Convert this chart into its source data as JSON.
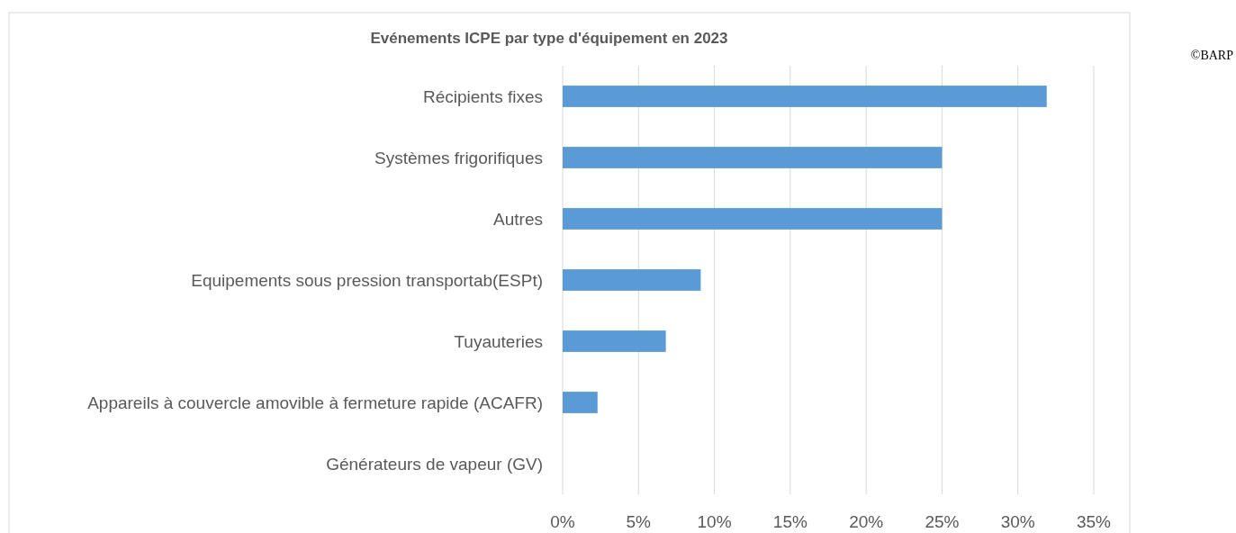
{
  "chart_data": {
    "type": "bar",
    "orientation": "horizontal",
    "title": "Evénements ICPE par type d'équipement en 2023",
    "categories": [
      "Récipients fixes",
      "Systèmes frigorifiques",
      "Autres",
      "Equipements sous pression transportab(ESPt)",
      "Tuyauteries",
      "Appareils à couvercle amovible à fermeture rapide (ACAFR)",
      "Générateurs de vapeur (GV)"
    ],
    "values": [
      31.9,
      25,
      25,
      9.1,
      6.8,
      2.3,
      0
    ],
    "color": "#5b9bd5",
    "xlim": [
      0,
      35
    ],
    "xticks": [
      {
        "value": 0,
        "label": "0%"
      },
      {
        "value": 5,
        "label": "5%"
      },
      {
        "value": 10,
        "label": "10%"
      },
      {
        "value": 15,
        "label": "15%"
      },
      {
        "value": 20,
        "label": "20%"
      },
      {
        "value": 25,
        "label": "25%"
      },
      {
        "value": 30,
        "label": "30%"
      },
      {
        "value": 35,
        "label": "35%"
      }
    ],
    "grid": "x",
    "annotations": [
      "©BARP"
    ]
  }
}
